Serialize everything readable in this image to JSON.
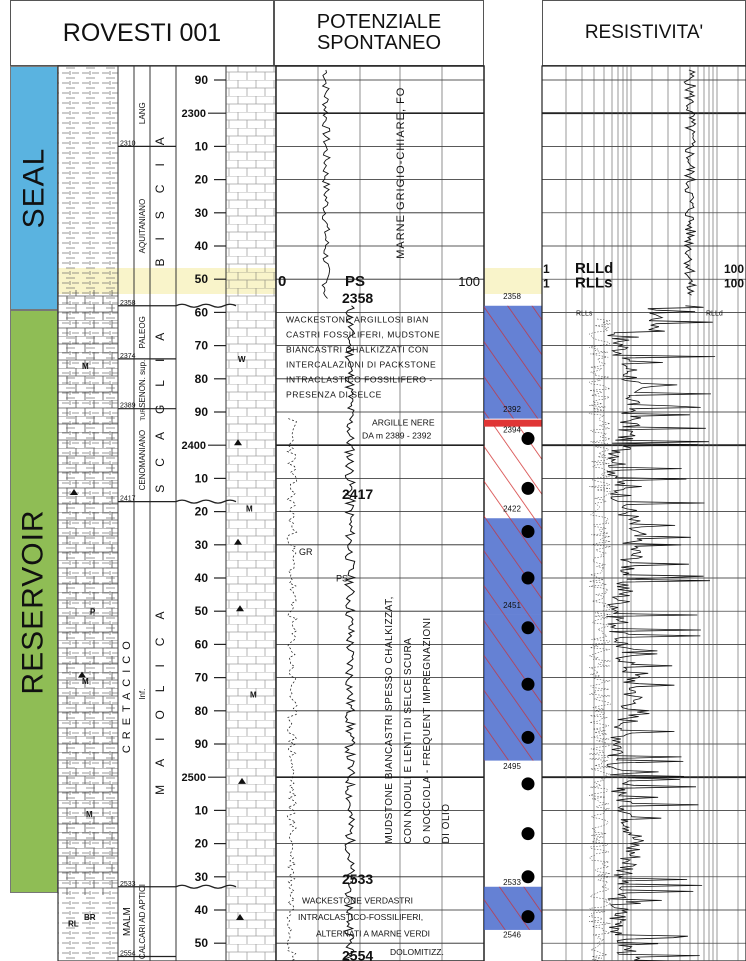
{
  "headers": {
    "well": "ROVESTI 001",
    "sp": "POTENZIALE SPONTANEO",
    "res": "RESISTIVITA'"
  },
  "zones": [
    {
      "label": "SEAL",
      "color": "#5ab3e0"
    },
    {
      "label": "RESERVOIR",
      "color": "#8fbd55"
    }
  ],
  "stratigraphy": {
    "system_labels": [
      "CRETACICO",
      "MALM"
    ],
    "stage_labels": [
      "LANG",
      "AQUITANIANO",
      "PALEOG",
      "SENON. sup.",
      "TUR.",
      "CENOMANIANO",
      "Inf.",
      "CALCARI AD APTICI"
    ],
    "boundary_depths": [
      "2310",
      "2358",
      "2374",
      "2389",
      "2417",
      "2533",
      "2554"
    ],
    "formation_labels": [
      "BISCIA",
      "SCAGLIA",
      "MAIOLICA"
    ],
    "fossil_codes": [
      "M",
      "W",
      "P",
      "BR",
      "RL"
    ]
  },
  "depth_scale": {
    "ticks": [
      "90",
      "2300",
      "10",
      "20",
      "30",
      "40",
      "50",
      "60",
      "70",
      "80",
      "90",
      "2400",
      "10",
      "20",
      "30",
      "40",
      "50",
      "60",
      "70",
      "80",
      "90",
      "2500",
      "10",
      "20",
      "30",
      "40",
      "50"
    ]
  },
  "sp_log": {
    "scale_min": "0",
    "scale_label": "PS",
    "scale_max": "100",
    "curve_labels": [
      "GR",
      "PS"
    ],
    "depth_labels": [
      "2358",
      "2417",
      "2533",
      "2554"
    ],
    "description_seal": "MARNE GRIGIO-CHIARE, FO",
    "description_1": [
      "WACKESTONE ARGILLOSI BIAN",
      "CASTRI FOSSILIFERI, MUDSTONE",
      "BIANCASTRI CHALKIZZATI CON",
      "INTERCALAZIONI DI PACKSTONE",
      "INTRACLASTICO FOSSILIFERO -",
      "PRESENZA DI SELCE"
    ],
    "description_2": [
      "ARGILLE NERE",
      "DA m 2389 - 2392"
    ],
    "description_3": [
      "MUDSTONE BIANCASTRI SPESSO CHALKIZZAT,",
      "CON NODULI E LENTI DI SELCE SCURA",
      "O NOCCIOLA - FREQUENT IMPREGNAZIONI",
      "DI OLIO"
    ],
    "description_4": [
      "WACKESTONE VERDASTRI",
      "INTRACLASTICO-FOSSILIFERI,",
      "ALTERNATI A MARNE VERDI",
      "DOLOMITIZZ."
    ]
  },
  "facies": {
    "depth_labels": [
      "2358",
      "2392",
      "2394",
      "2422",
      "2451",
      "2495",
      "2533",
      "2546"
    ],
    "blue_fill": "#3f61c9",
    "red_band": "#e03535"
  },
  "resistivity_log": {
    "scale_min_1": "1",
    "curve_1": "RLLd",
    "scale_max_1": "100",
    "scale_min_2": "1",
    "curve_2": "RLLs",
    "scale_max_2": "100",
    "curve_label_small": "RLLs",
    "curve_label_small_2": "RLLd"
  }
}
